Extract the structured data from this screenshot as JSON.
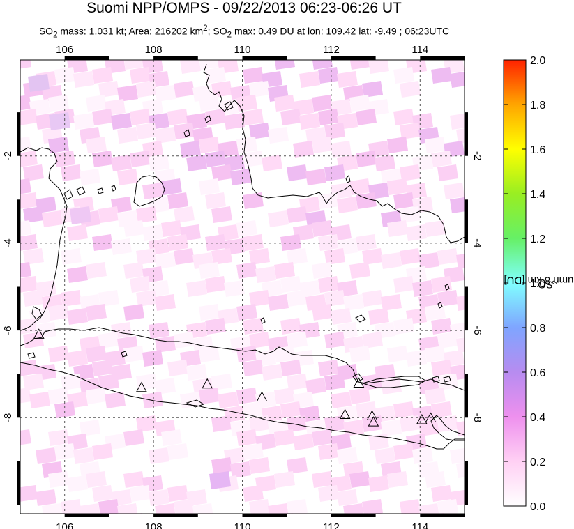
{
  "title": "Suomi NPP/OMPS - 09/22/2013 06:23-06:26 UT",
  "subtitle_html": "SO<sub>2</sub> mass: 1.031 kt; Area: 216202 km<sup>2</sup>; SO<sub>2</sub> max: 0.49 DU at lon: 109.42 lat: -9.49 ; 06:23UTC",
  "map": {
    "lon_ticks": [
      "106",
      "108",
      "110",
      "112",
      "114"
    ],
    "lat_ticks": [
      "-2",
      "-4",
      "-6",
      "-8"
    ],
    "lon_range": [
      105,
      115
    ],
    "lat_range": [
      -10.2,
      0.2
    ],
    "volcano_marker": "triangle-icon",
    "volcanoes": [
      {
        "lon": 105.42,
        "lat": -6.1
      },
      {
        "lon": 107.73,
        "lat": -7.32
      },
      {
        "lon": 109.21,
        "lat": -7.24
      },
      {
        "lon": 110.44,
        "lat": -7.54
      },
      {
        "lon": 112.31,
        "lat": -7.94
      },
      {
        "lon": 112.92,
        "lat": -7.97
      },
      {
        "lon": 112.95,
        "lat": -8.11
      },
      {
        "lon": 114.04,
        "lat": -8.06
      },
      {
        "lon": 114.24,
        "lat": -8.02
      },
      {
        "lon": 112.62,
        "lat": -7.22
      }
    ]
  },
  "colorbar": {
    "label_main": "SO",
    "label_sub": "2",
    "label_rest": " column 8 km [DU]",
    "ticks": [
      "2.0",
      "1.8",
      "1.6",
      "1.4",
      "1.2",
      "1.0",
      "0.8",
      "0.6",
      "0.4",
      "0.2",
      "0.0"
    ],
    "range": [
      0,
      2
    ],
    "colors": [
      "#ffffff",
      "#ffd0f4",
      "#ee90ee",
      "#b78cf0",
      "#7fa5ff",
      "#80ffff",
      "#66f066",
      "#99ee22",
      "#ffff00",
      "#ffa500",
      "#ff2200"
    ]
  }
}
